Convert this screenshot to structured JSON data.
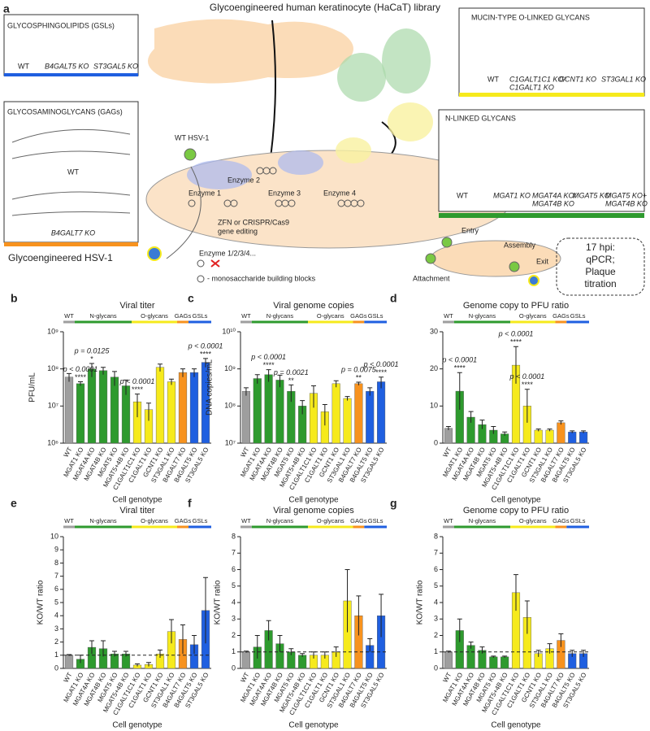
{
  "panel_a": {
    "letter": "a",
    "title": "Glycoengineered human keratinocyte (HaCaT) library",
    "gsl_title": "GLYCOSPHINGOLIPIDS (GSLs)",
    "gsl_labels": [
      "WT",
      "B4GALT5 KO",
      "ST3GAL5 KO"
    ],
    "gag_title": "GLYCOSAMINOGLYCANS (GAGs)",
    "gag_labels": [
      "WT",
      "B4GALT7 KO"
    ],
    "wt_virus": "WT HSV-1",
    "eng_virus": "Glycoengineered HSV-1",
    "enzymes": [
      "Enzyme 1",
      "Enzyme 2",
      "Enzyme 3",
      "Enzyme 4"
    ],
    "editing": [
      "ZFN or CRISPR/Cas9",
      "gene editing"
    ],
    "enzyme_ko": "Enzyme 1/2/3/4...",
    "building_blocks": "- monosaccharide building blocks",
    "mucin_title": "MUCIN-TYPE O-LINKED GLYCANS",
    "mucin_labels": [
      "WT",
      "C1GALT1C1 KO/",
      "C1GALT1 KO",
      "GCNT1 KO",
      "ST3GAL1 KO"
    ],
    "nlinked_title": "N-LINKED GLYCANS",
    "nlinked_labels": [
      "WT",
      "MGAT1 KO",
      "MGAT4A KO/",
      "MGAT4B KO",
      "MGAT5 KO",
      "MGAT5 KO+",
      "MGAT4B KO"
    ],
    "cycle": [
      "Entry",
      "Assembly",
      "Attachment",
      "Exit"
    ],
    "readout": [
      "17 hpi:",
      "qPCR;",
      "Plaque",
      "titration"
    ]
  },
  "chart_data": [
    {
      "type": "bar",
      "panel": "b",
      "title": "Viral titer",
      "y_label": "PFU/mL",
      "x_label": "Cell genotype",
      "log": true,
      "categories": [
        "WT",
        "MGAT1 KO",
        "MGAT4A KO",
        "MGAT4B KO",
        "MGAT5 KO",
        "MGAT5+4B KO",
        "C1GALT1C1 KO",
        "C1GALT1 KO",
        "GCNT1 KO",
        "ST3GAL1 KO",
        "B4GALT7 KO",
        "B4GALT5 KO",
        "ST3GAL5 KO"
      ],
      "values": [
        60000000,
        40000000,
        100000000,
        90000000,
        60000000,
        35000000,
        13000000,
        8000000,
        110000000,
        45000000,
        80000000,
        80000000,
        150000000
      ],
      "errors": [
        15000000,
        5000000,
        40000000,
        20000000,
        25000000,
        15000000,
        8000000,
        4000000,
        25000000,
        8000000,
        20000000,
        20000000,
        40000000
      ],
      "colors": [
        "#9e9e9e",
        "#2e9a2e",
        "#2e9a2e",
        "#2e9a2e",
        "#2e9a2e",
        "#2e9a2e",
        "#f6ea1c",
        "#f6ea1c",
        "#f6ea1c",
        "#f6ea1c",
        "#f7921e",
        "#1f5fe0",
        "#1f5fe0"
      ],
      "groups": [
        {
          "name": "WT",
          "color": "#9e9e9e"
        },
        {
          "name": "N-glycans",
          "color": "#2e9a2e"
        },
        {
          "name": "O-glycans",
          "color": "#f6ea1c"
        },
        {
          "name": "GAGs",
          "color": "#f7921e"
        },
        {
          "name": "GSLs",
          "color": "#1f5fe0"
        }
      ],
      "ylim": [
        1000000,
        1000000000
      ],
      "yticks": [
        {
          "value": 1000000,
          "label": "10⁶"
        },
        {
          "value": 10000000,
          "label": "10⁷"
        },
        {
          "value": 100000000,
          "label": "10⁸"
        },
        {
          "value": 1000000000,
          "label": "10⁹"
        }
      ],
      "annotations": [
        {
          "bar": "MGAT1 KO",
          "text": "p < 0.0001",
          "stars": "****"
        },
        {
          "bar": "MGAT4A KO",
          "text": "p = 0.0125",
          "stars": "*"
        },
        {
          "bar": "C1GALT1C1 KO",
          "text": "p < 0.0001",
          "stars": "****"
        },
        {
          "bar": "ST3GAL5 KO",
          "text": "p < 0.0001",
          "stars": "****"
        }
      ]
    },
    {
      "type": "bar",
      "panel": "c",
      "title": "Viral genome copies",
      "y_label": "DNA copies/mL",
      "x_label": "Cell genotype",
      "log": true,
      "categories": [
        "WT",
        "MGAT1 KO",
        "MGAT4A KO",
        "MGAT4B KO",
        "MGAT5 KO",
        "MGAT5+4B KO",
        "C1GALT1C1 KO",
        "C1GALT1 KO",
        "GCNT1 KO",
        "ST3GAL1 KO",
        "B4GALT7 KO",
        "B4GALT5 KO",
        "ST3GAL5 KO"
      ],
      "values": [
        250000000,
        550000000,
        700000000,
        500000000,
        250000000,
        100000000,
        220000000,
        70000000,
        400000000,
        160000000,
        400000000,
        250000000,
        450000000
      ],
      "errors": [
        60000000,
        150000000,
        250000000,
        180000000,
        120000000,
        40000000,
        130000000,
        40000000,
        80000000,
        20000000,
        40000000,
        60000000,
        150000000
      ],
      "colors": [
        "#9e9e9e",
        "#2e9a2e",
        "#2e9a2e",
        "#2e9a2e",
        "#2e9a2e",
        "#2e9a2e",
        "#f6ea1c",
        "#f6ea1c",
        "#f6ea1c",
        "#f6ea1c",
        "#f7921e",
        "#1f5fe0",
        "#1f5fe0"
      ],
      "groups": [
        {
          "name": "WT",
          "color": "#9e9e9e"
        },
        {
          "name": "N-glycans",
          "color": "#2e9a2e"
        },
        {
          "name": "O-glycans",
          "color": "#f6ea1c"
        },
        {
          "name": "GAGs",
          "color": "#f7921e"
        },
        {
          "name": "GSLs",
          "color": "#1f5fe0"
        }
      ],
      "ylim": [
        10000000,
        10000000000
      ],
      "yticks": [
        {
          "value": 10000000,
          "label": "10⁷"
        },
        {
          "value": 100000000,
          "label": "10⁸"
        },
        {
          "value": 1000000000,
          "label": "10⁹"
        },
        {
          "value": 10000000000,
          "label": "10¹⁰"
        }
      ],
      "annotations": [
        {
          "bar": "MGAT4A KO",
          "text": "p < 0.0001",
          "stars": "****"
        },
        {
          "bar": "MGAT5 KO",
          "text": "p = 0.0021",
          "stars": "**"
        },
        {
          "bar": "B4GALT7 KO",
          "text": "p = 0.0075",
          "stars": "**"
        },
        {
          "bar": "ST3GAL5 KO",
          "text": "p < 0.0001",
          "stars": "****"
        }
      ]
    },
    {
      "type": "bar",
      "panel": "d",
      "title": "Genome copy to PFU ratio",
      "x_label": "Cell genotype",
      "log": false,
      "categories": [
        "WT",
        "MGAT1 KO",
        "MGAT4A KO",
        "MGAT4B KO",
        "MGAT5 KO",
        "MGAT5+4B KO",
        "C1GALT1C1 KO",
        "C1GALT1 KO",
        "GCNT1 KO",
        "ST3GAL1 KO",
        "B4GALT7 KO",
        "B4GALT5 KO",
        "ST3GAL5 KO"
      ],
      "values": [
        4,
        14,
        7,
        5,
        3.5,
        2.5,
        21,
        10,
        3.5,
        3.5,
        5.5,
        3,
        3
      ],
      "errors": [
        0.5,
        5,
        1.5,
        1.2,
        1,
        0.5,
        5,
        4.5,
        0.3,
        0.3,
        0.5,
        0.3,
        0.3
      ],
      "colors": [
        "#9e9e9e",
        "#2e9a2e",
        "#2e9a2e",
        "#2e9a2e",
        "#2e9a2e",
        "#2e9a2e",
        "#f6ea1c",
        "#f6ea1c",
        "#f6ea1c",
        "#f6ea1c",
        "#f7921e",
        "#1f5fe0",
        "#1f5fe0"
      ],
      "groups": [
        {
          "name": "WT",
          "color": "#9e9e9e"
        },
        {
          "name": "N-glycans",
          "color": "#2e9a2e"
        },
        {
          "name": "O-glycans",
          "color": "#f6ea1c"
        },
        {
          "name": "GAGs",
          "color": "#f7921e"
        },
        {
          "name": "GSLs",
          "color": "#1f5fe0"
        }
      ],
      "ylim": [
        0,
        30
      ],
      "yticks": [
        0,
        10,
        20,
        30
      ],
      "annotations": [
        {
          "bar": "MGAT1 KO",
          "text": "p < 0.0001",
          "stars": "****"
        },
        {
          "bar": "C1GALT1C1 KO",
          "text": "p < 0.0001",
          "stars": "****"
        },
        {
          "bar": "C1GALT1 KO",
          "text": "p < 0.0001",
          "stars": "****"
        }
      ]
    },
    {
      "type": "bar",
      "panel": "e",
      "title": "Viral titer",
      "y_label": "KO/WT ratio",
      "x_label": "Cell genotype",
      "log": false,
      "refline": 1,
      "categories": [
        "WT",
        "MGAT1 KO",
        "MGAT4A KO",
        "MGAT4B KO",
        "MGAT5 KO",
        "MGAT5+4B KO",
        "C1GALT1C1 KO",
        "C1GALT1 KO",
        "GCNT1 KO",
        "ST3GAL1 KO",
        "B4GALT7 KO",
        "B4GALT5 KO",
        "ST3GAL5 KO"
      ],
      "values": [
        1,
        0.7,
        1.6,
        1.5,
        1.1,
        1.1,
        0.25,
        0.3,
        1.1,
        2.8,
        2.2,
        1.8,
        4.4
      ],
      "errors": [
        0.05,
        0.3,
        0.5,
        0.6,
        0.2,
        0.2,
        0.1,
        0.15,
        0.3,
        0.9,
        1.1,
        0.7,
        2.5
      ],
      "colors": [
        "#9e9e9e",
        "#2e9a2e",
        "#2e9a2e",
        "#2e9a2e",
        "#2e9a2e",
        "#2e9a2e",
        "#f6ea1c",
        "#f6ea1c",
        "#f6ea1c",
        "#f6ea1c",
        "#f7921e",
        "#1f5fe0",
        "#1f5fe0"
      ],
      "groups": [
        {
          "name": "WT",
          "color": "#9e9e9e"
        },
        {
          "name": "N-glycans",
          "color": "#2e9a2e"
        },
        {
          "name": "O-glycans",
          "color": "#f6ea1c"
        },
        {
          "name": "GAGs",
          "color": "#f7921e"
        },
        {
          "name": "GSLs",
          "color": "#1f5fe0"
        }
      ],
      "ylim": [
        0,
        10
      ],
      "yticks": [
        0,
        1,
        2,
        3,
        4,
        5,
        6,
        7,
        8,
        9,
        10
      ]
    },
    {
      "type": "bar",
      "panel": "f",
      "title": "Viral genome copies",
      "y_label": "KO/WT ratio",
      "x_label": "Cell genotype",
      "log": false,
      "refline": 1,
      "categories": [
        "WT",
        "MGAT1 KO",
        "MGAT4A KO",
        "MGAT4B KO",
        "MGAT5 KO",
        "MGAT5+4B KO",
        "C1GALT1C1 KO",
        "C1GALT1 KO",
        "GCNT1 KO",
        "ST3GAL1 KO",
        "B4GALT7 KO",
        "B4GALT5 KO",
        "ST3GAL5 KO"
      ],
      "values": [
        1,
        1.3,
        2.3,
        1.5,
        1,
        0.8,
        0.8,
        0.8,
        1,
        4.1,
        3.2,
        1.4,
        3.2
      ],
      "errors": [
        0.05,
        0.7,
        0.6,
        0.5,
        0.2,
        0.1,
        0.2,
        0.2,
        0.3,
        1.9,
        1.2,
        0.4,
        1.3
      ],
      "colors": [
        "#9e9e9e",
        "#2e9a2e",
        "#2e9a2e",
        "#2e9a2e",
        "#2e9a2e",
        "#2e9a2e",
        "#f6ea1c",
        "#f6ea1c",
        "#f6ea1c",
        "#f6ea1c",
        "#f7921e",
        "#1f5fe0",
        "#1f5fe0"
      ],
      "groups": [
        {
          "name": "WT",
          "color": "#9e9e9e"
        },
        {
          "name": "N-glycans",
          "color": "#2e9a2e"
        },
        {
          "name": "O-glycans",
          "color": "#f6ea1c"
        },
        {
          "name": "GAGs",
          "color": "#f7921e"
        },
        {
          "name": "GSLs",
          "color": "#1f5fe0"
        }
      ],
      "ylim": [
        0,
        8
      ],
      "yticks": [
        0,
        1,
        2,
        3,
        4,
        5,
        6,
        7,
        8
      ]
    },
    {
      "type": "bar",
      "panel": "g",
      "title": "Genome copy to PFU ratio",
      "y_label": "KO/WT ratio",
      "x_label": "Cell genotype",
      "log": false,
      "refline": 1,
      "categories": [
        "WT",
        "MGAT1 KO",
        "MGAT4A KO",
        "MGAT4B KO",
        "MGAT5 KO",
        "MGAT5+4B KO",
        "C1GALT1C1 KO",
        "C1GALT1 KO",
        "GCNT1 KO",
        "ST3GAL1 KO",
        "B4GALT7 KO",
        "B4GALT5 KO",
        "ST3GAL5 KO"
      ],
      "values": [
        1,
        2.3,
        1.4,
        1.1,
        0.7,
        0.7,
        4.6,
        3.1,
        0.9,
        1.2,
        1.7,
        0.9,
        0.9
      ],
      "errors": [
        0.05,
        0.7,
        0.2,
        0.2,
        0.05,
        0.05,
        1.1,
        1,
        0.2,
        0.3,
        0.4,
        0.2,
        0.2
      ],
      "colors": [
        "#9e9e9e",
        "#2e9a2e",
        "#2e9a2e",
        "#2e9a2e",
        "#2e9a2e",
        "#2e9a2e",
        "#f6ea1c",
        "#f6ea1c",
        "#f6ea1c",
        "#f6ea1c",
        "#f7921e",
        "#1f5fe0",
        "#1f5fe0"
      ],
      "groups": [
        {
          "name": "WT",
          "color": "#9e9e9e"
        },
        {
          "name": "N-glycans",
          "color": "#2e9a2e"
        },
        {
          "name": "O-glycans",
          "color": "#f6ea1c"
        },
        {
          "name": "GAGs",
          "color": "#f7921e"
        },
        {
          "name": "GSLs",
          "color": "#1f5fe0"
        }
      ],
      "ylim": [
        0,
        8
      ],
      "yticks": [
        0,
        1,
        2,
        3,
        4,
        5,
        6,
        7,
        8
      ]
    }
  ]
}
